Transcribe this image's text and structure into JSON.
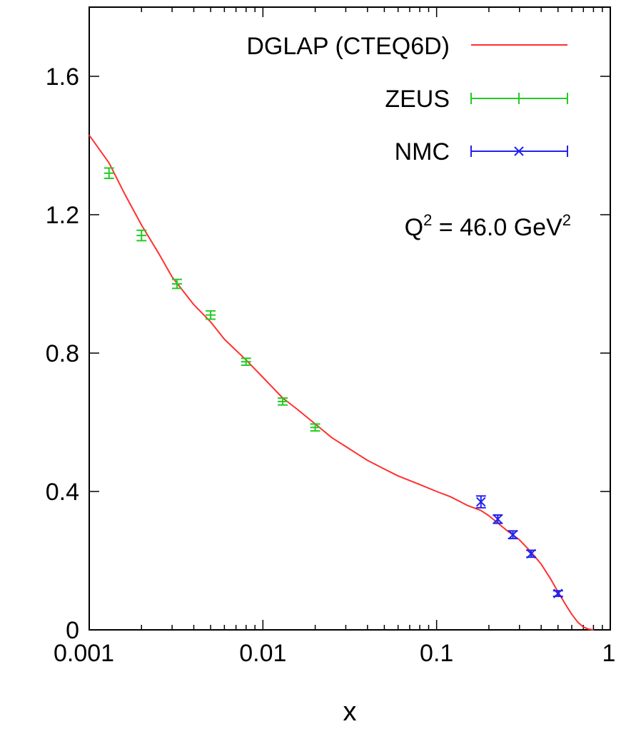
{
  "chart_data": {
    "type": "scatter",
    "title": "",
    "xlabel": "x",
    "ylabel": "",
    "xscale": "log",
    "xlim": [
      0.001,
      1
    ],
    "ylim": [
      0,
      1.8
    ],
    "x_ticks": [
      {
        "value": 0.001,
        "label": "0.001"
      },
      {
        "value": 0.01,
        "label": "0.01"
      },
      {
        "value": 0.1,
        "label": "0.1"
      },
      {
        "value": 1,
        "label": "1"
      }
    ],
    "y_ticks": [
      {
        "value": 0,
        "label": "0"
      },
      {
        "value": 0.4,
        "label": "0.4"
      },
      {
        "value": 0.8,
        "label": "0.8"
      },
      {
        "value": 1.2,
        "label": "1.2"
      },
      {
        "value": 1.6,
        "label": "1.6"
      }
    ],
    "grid": false,
    "legend_position": "top-right",
    "annotation": {
      "text_main": "Q",
      "sup1": "2",
      "text_mid": " = 46.0 GeV",
      "sup2": "2"
    },
    "series": [
      {
        "name": "DGLAP (CTEQ6D)",
        "kind": "line",
        "color": "#ff3030",
        "x": [
          0.001,
          0.0013,
          0.0016,
          0.002,
          0.0025,
          0.003,
          0.004,
          0.005,
          0.006,
          0.008,
          0.01,
          0.013,
          0.016,
          0.02,
          0.025,
          0.03,
          0.04,
          0.05,
          0.06,
          0.08,
          0.1,
          0.12,
          0.15,
          0.18,
          0.2,
          0.25,
          0.3,
          0.35,
          0.4,
          0.45,
          0.5,
          0.55,
          0.6,
          0.65,
          0.7,
          0.75,
          0.8
        ],
        "y": [
          1.43,
          1.35,
          1.26,
          1.17,
          1.09,
          1.02,
          0.94,
          0.89,
          0.84,
          0.78,
          0.73,
          0.67,
          0.635,
          0.595,
          0.555,
          0.53,
          0.49,
          0.465,
          0.445,
          0.42,
          0.4,
          0.385,
          0.36,
          0.345,
          0.33,
          0.29,
          0.26,
          0.225,
          0.19,
          0.15,
          0.11,
          0.075,
          0.045,
          0.022,
          0.008,
          0.002,
          0.0
        ]
      },
      {
        "name": "ZEUS",
        "kind": "errorbar",
        "color": "#22cc22",
        "marker": "plus",
        "x": [
          0.0013,
          0.002,
          0.0032,
          0.005,
          0.008,
          0.013,
          0.02
        ],
        "y": [
          1.32,
          1.14,
          1.0,
          0.91,
          0.775,
          0.66,
          0.585
        ],
        "err": [
          0.015,
          0.015,
          0.013,
          0.012,
          0.01,
          0.01,
          0.01
        ]
      },
      {
        "name": "NMC",
        "kind": "errorbar",
        "color": "#2222ee",
        "marker": "cross",
        "x": [
          0.18,
          0.225,
          0.275,
          0.35,
          0.5
        ],
        "y": [
          0.37,
          0.32,
          0.275,
          0.22,
          0.105
        ],
        "err": [
          0.017,
          0.012,
          0.011,
          0.01,
          0.008
        ]
      }
    ]
  }
}
